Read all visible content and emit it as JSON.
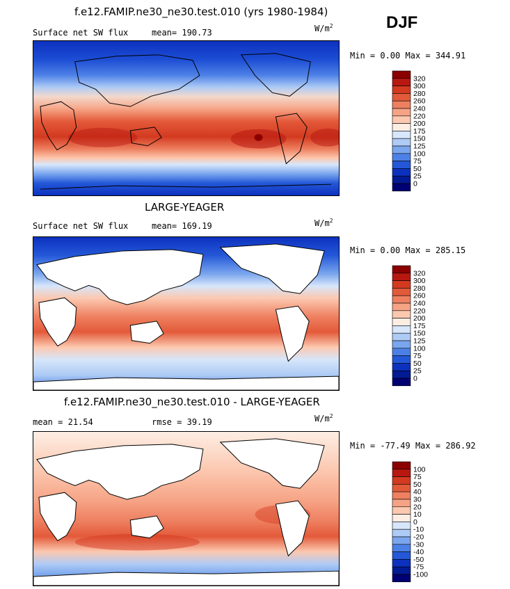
{
  "figure": {
    "season": "DJF",
    "unit_text": "W/m",
    "unit_exp": "2"
  },
  "chart_data": [
    {
      "type": "heatmap",
      "title": "f.e12.FAMIP.ne30_ne30.test.010 (yrs 1980-1984)",
      "left_label": "Surface net SW flux",
      "stat_label": "mean=",
      "stat_value": "190.73",
      "min_label": "Min =",
      "min_value": "0.00",
      "max_label": "Max =",
      "max_value": "344.91",
      "colorbar_levels": [
        "320",
        "300",
        "280",
        "260",
        "240",
        "220",
        "200",
        "175",
        "150",
        "125",
        "100",
        "75",
        "50",
        "25",
        "0"
      ],
      "colorbar_colors": [
        "#8b0000",
        "#b81810",
        "#d33a20",
        "#e35a3a",
        "#ee8060",
        "#f6a385",
        "#fcc8b0",
        "#fdeee4",
        "#d7e6fa",
        "#aecbf5",
        "#7aa6ee",
        "#4d80e6",
        "#2458d8",
        "#0d31bf",
        "#021a93",
        "#000073"
      ]
    },
    {
      "type": "heatmap",
      "title": "LARGE-YEAGER",
      "left_label": "Surface net SW flux",
      "stat_label": "mean=",
      "stat_value": "169.19",
      "min_label": "Min =",
      "min_value": "0.00",
      "max_label": "Max =",
      "max_value": "285.15",
      "colorbar_levels": [
        "320",
        "300",
        "280",
        "260",
        "240",
        "220",
        "200",
        "175",
        "150",
        "125",
        "100",
        "75",
        "50",
        "25",
        "0"
      ],
      "colorbar_colors": [
        "#8b0000",
        "#b81810",
        "#d33a20",
        "#e35a3a",
        "#ee8060",
        "#f6a385",
        "#fcc8b0",
        "#fdeee4",
        "#d7e6fa",
        "#aecbf5",
        "#7aa6ee",
        "#4d80e6",
        "#2458d8",
        "#0d31bf",
        "#021a93",
        "#000073"
      ]
    },
    {
      "type": "heatmap",
      "title": "f.e12.FAMIP.ne30_ne30.test.010 - LARGE-YEAGER",
      "left_label": "mean =",
      "left_value": "21.54",
      "stat_label": "rmse =",
      "stat_value": "39.19",
      "min_label": "Min =",
      "min_value": "-77.49",
      "max_label": "Max =",
      "max_value": "286.92",
      "colorbar_levels": [
        "100",
        "75",
        "50",
        "40",
        "30",
        "20",
        "10",
        "0",
        "-10",
        "-20",
        "-30",
        "-40",
        "-50",
        "-75",
        "-100"
      ],
      "colorbar_colors": [
        "#8b0000",
        "#b81810",
        "#d33a20",
        "#e35a3a",
        "#ee8060",
        "#f6a385",
        "#fcc8b0",
        "#fdeee4",
        "#d7e6fa",
        "#aecbf5",
        "#7aa6ee",
        "#4d80e6",
        "#2458d8",
        "#0d31bf",
        "#021a93",
        "#000073"
      ]
    }
  ]
}
